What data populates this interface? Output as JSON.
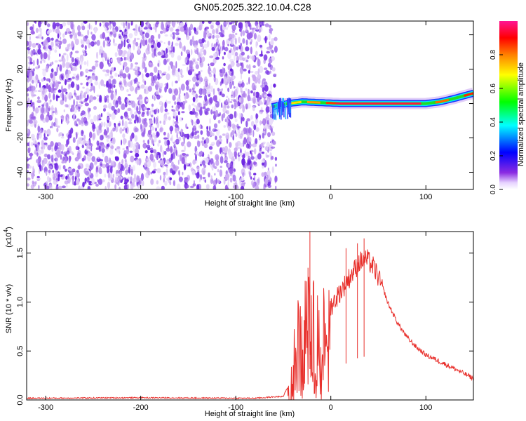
{
  "title": "GN05.2025.322.10.04.C28",
  "colors": {
    "snr_line": "#e8302c",
    "axis": "#000000",
    "speckle_dark": "#6a22e0",
    "speckle_light": "#d9c2f5"
  },
  "chart_data": [
    {
      "type": "heatmap",
      "xlabel": "Height of straight line (km)",
      "ylabel": "Frequency (Hz)",
      "xlim": [
        -320,
        150
      ],
      "ylim": [
        -50,
        48
      ],
      "x_ticks": [
        -300,
        -200,
        -100,
        0,
        100
      ],
      "y_ticks": [
        -40,
        -20,
        0,
        20,
        40
      ],
      "noise_region_x": [
        -320,
        -62
      ],
      "signal_track": [
        {
          "x": -62,
          "y": -2
        },
        {
          "x": -55,
          "y": -1
        },
        {
          "x": -45,
          "y": 0
        },
        {
          "x": -30,
          "y": 1
        },
        {
          "x": -10,
          "y": 0.5
        },
        {
          "x": 10,
          "y": 0
        },
        {
          "x": 40,
          "y": 0
        },
        {
          "x": 80,
          "y": 0
        },
        {
          "x": 100,
          "y": 0
        },
        {
          "x": 115,
          "y": 1
        },
        {
          "x": 130,
          "y": 3
        },
        {
          "x": 150,
          "y": 6
        }
      ],
      "colorbar": {
        "label": "Normalized spectral amplitude",
        "range": [
          0,
          1
        ],
        "ticks": [
          0.0,
          0.2,
          0.4,
          0.6,
          0.8
        ],
        "tick_labels": [
          "0.0",
          "0.2",
          "0.4",
          "0.6",
          "0.8"
        ],
        "stops": [
          "#ffffff",
          "#e6d2ff",
          "#8a2be2",
          "#0000ff",
          "#00ffff",
          "#00ff00",
          "#ffff00",
          "#ff8000",
          "#ff0000",
          "#ff1493"
        ]
      }
    },
    {
      "type": "line",
      "xlabel": "Height of straight line (km)",
      "ylabel": "SNR (10 * v/v)",
      "y_multiplier": "(x10",
      "y_multiplier_exp": "4",
      "y_multiplier_close": ")",
      "xlim": [
        -320,
        150
      ],
      "ylim": [
        0,
        1.72
      ],
      "x_ticks": [
        -300,
        -200,
        -100,
        0,
        100
      ],
      "y_ticks": [
        0.0,
        0.5,
        1.0,
        1.5
      ],
      "y_tick_labels": [
        "0.0",
        "0.5",
        "1.0",
        "1.5"
      ],
      "series": [
        {
          "envelope": [
            {
              "x": -320,
              "y": 0.02
            },
            {
              "x": -200,
              "y": 0.025
            },
            {
              "x": -80,
              "y": 0.02
            },
            {
              "x": -50,
              "y": 0.04
            },
            {
              "x": -42,
              "y": 0.2
            },
            {
              "x": -38,
              "y": 0.55
            },
            {
              "x": -34,
              "y": 0.85
            },
            {
              "x": -28,
              "y": 0.95
            },
            {
              "x": -24,
              "y": 1.1
            },
            {
              "x": -20,
              "y": 1.0
            },
            {
              "x": -10,
              "y": 0.9
            },
            {
              "x": 0,
              "y": 1.0
            },
            {
              "x": 10,
              "y": 1.15
            },
            {
              "x": 20,
              "y": 1.3
            },
            {
              "x": 30,
              "y": 1.45
            },
            {
              "x": 38,
              "y": 1.48
            },
            {
              "x": 45,
              "y": 1.4
            },
            {
              "x": 50,
              "y": 1.3
            },
            {
              "x": 55,
              "y": 1.15
            },
            {
              "x": 60,
              "y": 1.0
            },
            {
              "x": 70,
              "y": 0.8
            },
            {
              "x": 80,
              "y": 0.65
            },
            {
              "x": 90,
              "y": 0.55
            },
            {
              "x": 100,
              "y": 0.47
            },
            {
              "x": 115,
              "y": 0.4
            },
            {
              "x": 130,
              "y": 0.33
            },
            {
              "x": 150,
              "y": 0.23
            }
          ],
          "peaks": [
            {
              "x": -22,
              "y": 1.72
            },
            {
              "x": -24,
              "y": 1.35
            },
            {
              "x": 16,
              "y": 1.55
            },
            {
              "x": 28,
              "y": 1.6
            },
            {
              "x": 35,
              "y": 1.65
            }
          ]
        }
      ]
    }
  ]
}
